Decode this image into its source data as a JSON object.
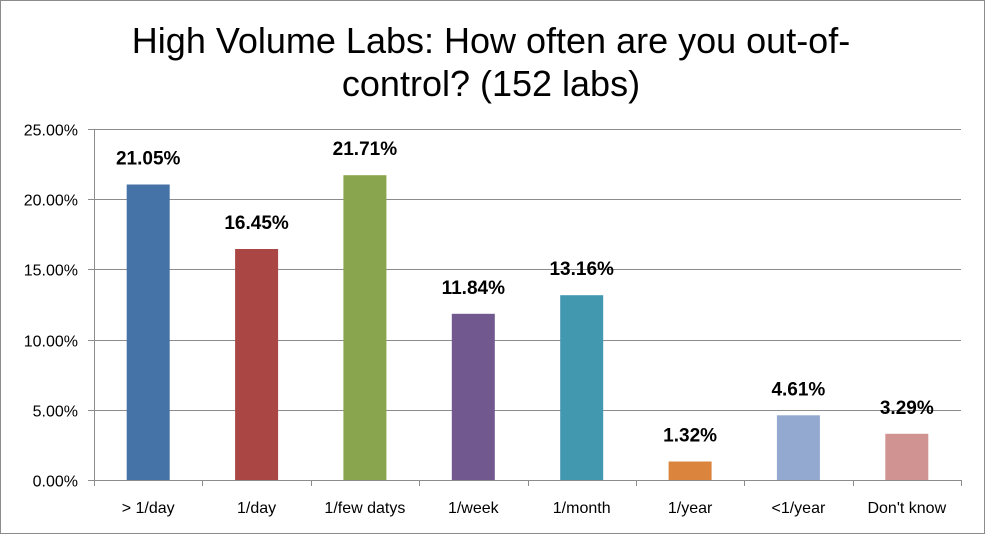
{
  "chart_data": {
    "type": "bar",
    "title": "High Volume Labs: How often are you out-of-control? (152 labs)",
    "title_lines": [
      "High Volume Labs: How often are you out-of-",
      "control? (152 labs)"
    ],
    "categories": [
      "> 1/day",
      "1/day",
      "1/few datys",
      "1/week",
      "1/month",
      "1/year",
      "<1/year",
      "Don't know"
    ],
    "values": [
      21.05,
      16.45,
      21.71,
      11.84,
      13.16,
      1.32,
      4.61,
      3.29
    ],
    "data_labels": [
      "21.05%",
      "16.45%",
      "21.71%",
      "11.84%",
      "13.16%",
      "1.32%",
      "4.61%",
      "3.29%"
    ],
    "colors": [
      "#4572a7",
      "#aa4643",
      "#89a54e",
      "#71588f",
      "#4198af",
      "#db843d",
      "#93a9cf",
      "#d19392"
    ],
    "xlabel": "",
    "ylabel": "",
    "ylim": [
      0,
      25
    ],
    "yticks": [
      0,
      5,
      10,
      15,
      20,
      25
    ],
    "ytick_labels": [
      "0.00%",
      "5.00%",
      "10.00%",
      "15.00%",
      "20.00%",
      "25.00%"
    ],
    "grid": true,
    "legend": "none"
  }
}
